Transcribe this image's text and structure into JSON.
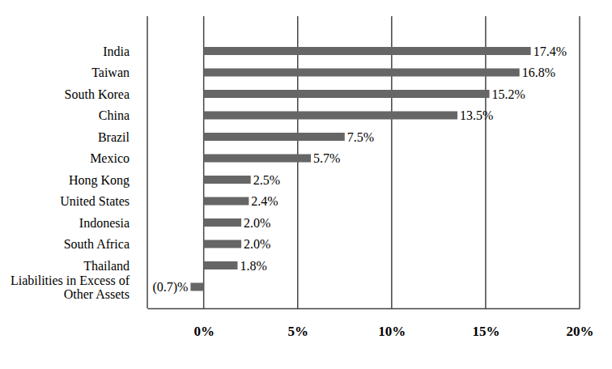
{
  "chart_data": {
    "type": "bar",
    "orientation": "horizontal",
    "categories": [
      "India",
      "Taiwan",
      "South Korea",
      "China",
      "Brazil",
      "Mexico",
      "Hong Kong",
      "United States",
      "Indonesia",
      "South Africa",
      "Thailand",
      "Liabilities in Excess of Other Assets"
    ],
    "values": [
      17.4,
      16.8,
      15.2,
      13.5,
      7.5,
      5.7,
      2.5,
      2.4,
      2.0,
      2.0,
      1.8,
      -0.7
    ],
    "value_labels": [
      "17.4%",
      "16.8%",
      "15.2%",
      "13.5%",
      "7.5%",
      "5.7%",
      "2.5%",
      "2.4%",
      "2.0%",
      "2.0%",
      "1.8%",
      "(0.7)%"
    ],
    "color": "#666666",
    "xlim": [
      -3,
      20
    ],
    "xticks": [
      {
        "value": 0,
        "label": "0%"
      },
      {
        "value": 5,
        "label": "5%"
      },
      {
        "value": 10,
        "label": "10%"
      },
      {
        "value": 15,
        "label": "15%"
      },
      {
        "value": 20,
        "label": "20%"
      }
    ],
    "grid": true,
    "data_labels": true
  }
}
